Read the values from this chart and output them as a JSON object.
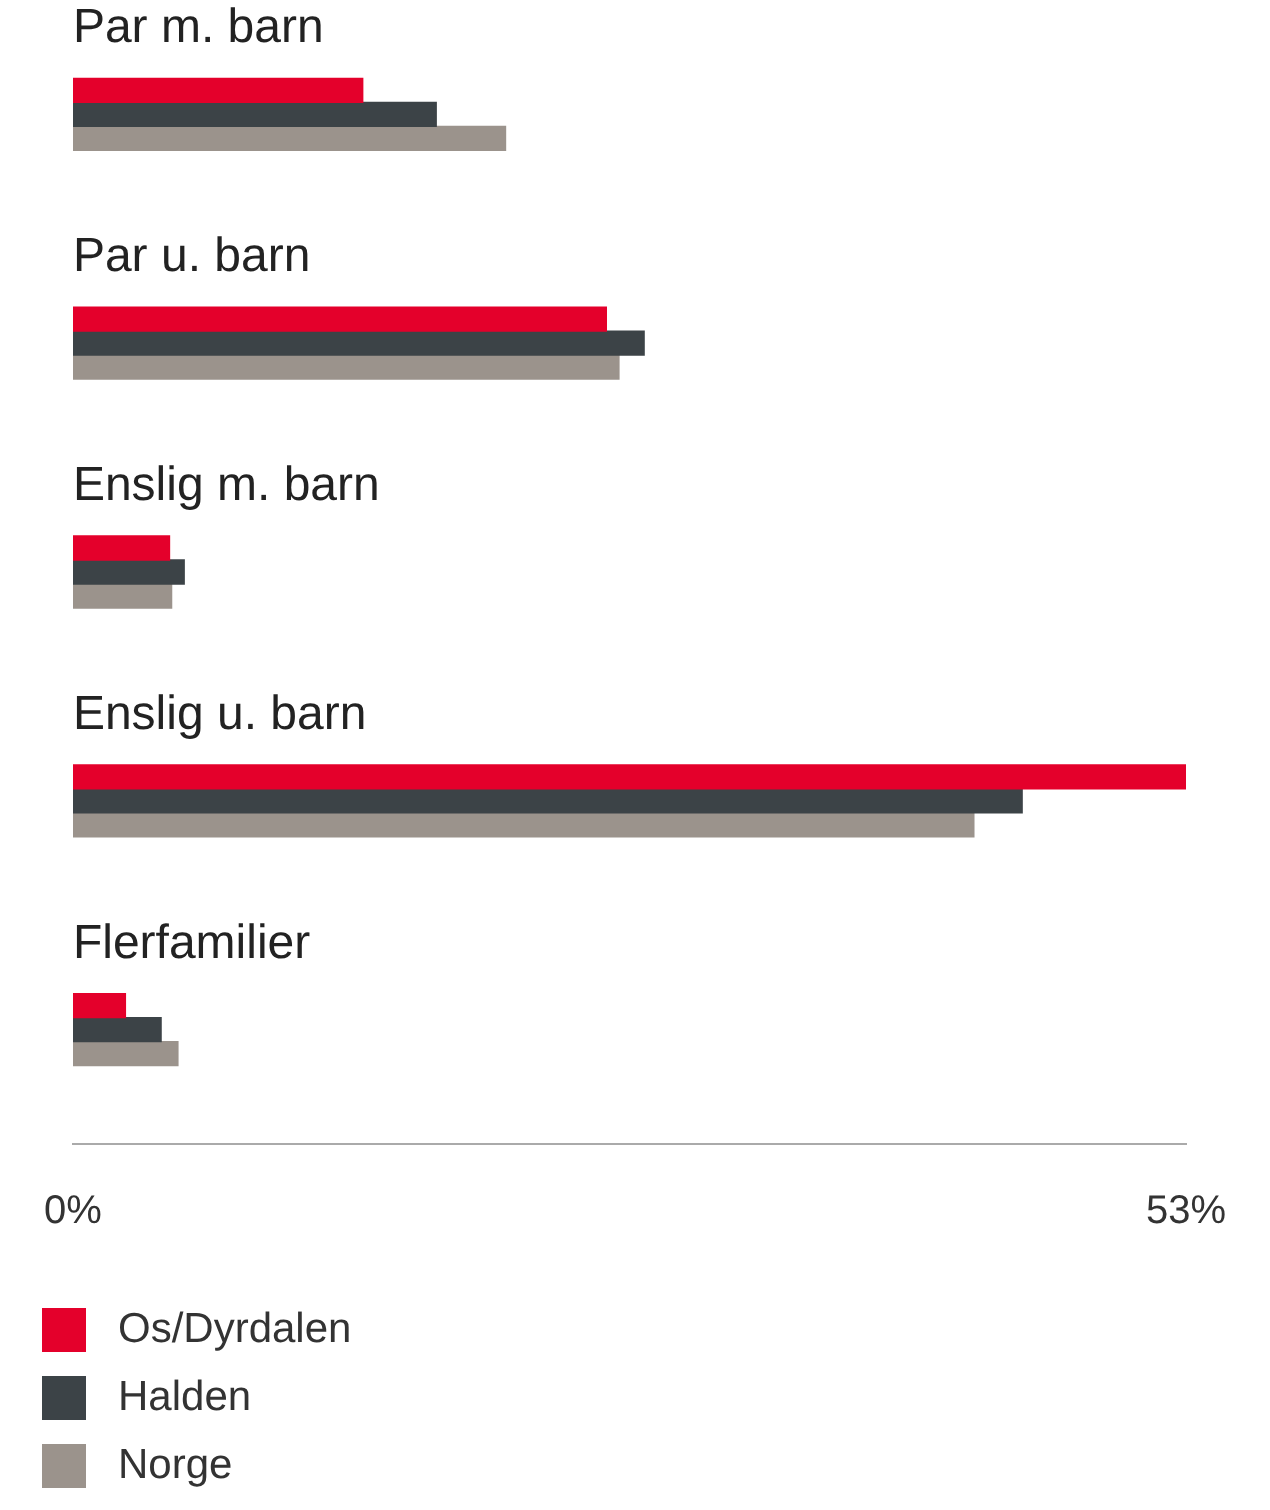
{
  "chart_data": {
    "type": "bar",
    "orientation": "horizontal",
    "categories": [
      "Par m. barn",
      "Par u. barn",
      "Enslig m. barn",
      "Enslig u. barn",
      "Flerfamilier"
    ],
    "series": [
      {
        "name": "Os/Dyrdalen",
        "color": "#e4002b",
        "values": [
          13.8,
          25.4,
          4.6,
          53.0,
          2.5
        ]
      },
      {
        "name": "Halden",
        "color": "#3c4347",
        "values": [
          17.3,
          27.2,
          5.3,
          45.2,
          4.2
        ]
      },
      {
        "name": "Norge",
        "color": "#9b938c",
        "values": [
          20.6,
          26.0,
          4.7,
          42.9,
          5.0
        ]
      }
    ],
    "xlim": [
      0,
      53
    ],
    "xticks": [
      {
        "value": 0,
        "label": "0%"
      },
      {
        "value": 53,
        "label": "53%"
      }
    ],
    "grid": false,
    "legend": "bottom"
  }
}
